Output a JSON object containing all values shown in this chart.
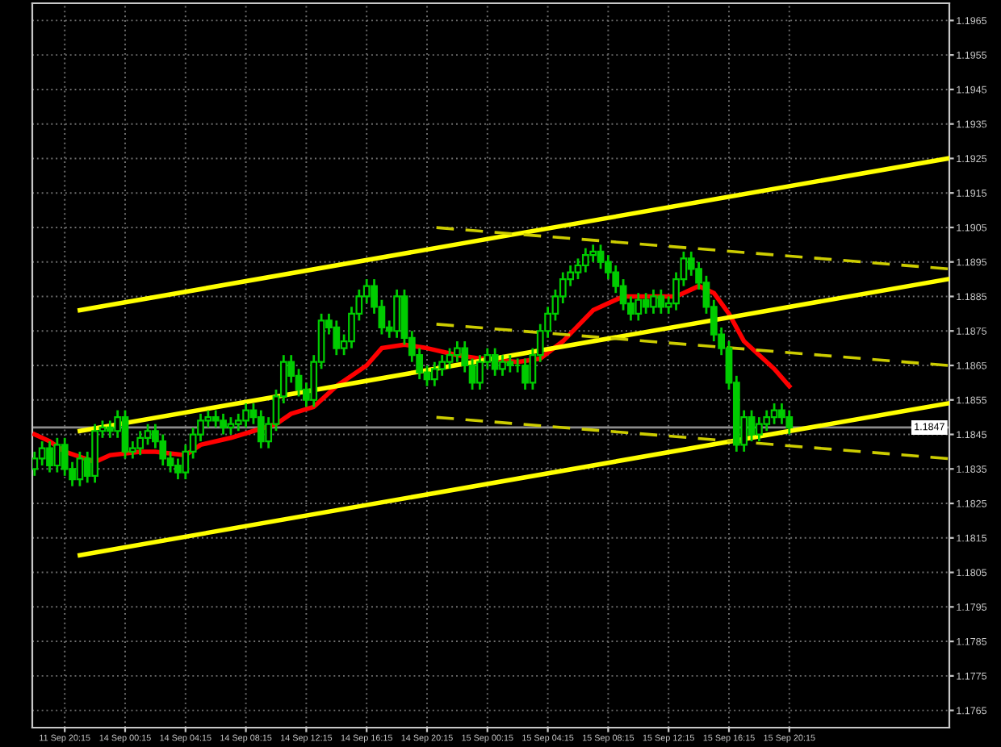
{
  "chart_data": {
    "type": "candlestick",
    "categories": [
      null,
      null,
      null,
      null,
      "11 Sep 20:15",
      null,
      null,
      null,
      null,
      null,
      null,
      null,
      "14 Sep 00:15",
      null,
      null,
      null,
      null,
      null,
      null,
      null,
      "14 Sep 04:15",
      null,
      null,
      null,
      null,
      null,
      null,
      null,
      "14 Sep 08:15",
      null,
      null,
      null,
      null,
      null,
      null,
      null,
      "14 Sep 12:15",
      null,
      null,
      null,
      null,
      null,
      null,
      null,
      "14 Sep 16:15",
      null,
      null,
      null,
      null,
      null,
      null,
      null,
      "14 Sep 20:15",
      null,
      null,
      null,
      null,
      null,
      null,
      null,
      "15 Sep 00:15",
      null,
      null,
      null,
      null,
      null,
      null,
      null,
      "15 Sep 04:15",
      null,
      null,
      null,
      null,
      null,
      null,
      null,
      "15 Sep 08:15",
      null,
      null,
      null,
      null,
      null,
      null,
      null,
      "15 Sep 12:15",
      null,
      null,
      null,
      null,
      null,
      null,
      null,
      "15 Sep 16:15",
      null,
      null,
      null,
      null,
      null,
      null,
      null,
      "15 Sep 20:15",
      null,
      null,
      null,
      null,
      null,
      null,
      null,
      null,
      null,
      null,
      null,
      null,
      null,
      null,
      null,
      null,
      null,
      null,
      null,
      null,
      null
    ],
    "ohlc": [
      [
        1.1835,
        1.184,
        1.1833,
        1.1838
      ],
      [
        1.1838,
        1.1843,
        1.1836,
        1.1841
      ],
      [
        1.1841,
        1.1843,
        1.1834,
        1.1836
      ],
      [
        1.1836,
        1.1844,
        1.1834,
        1.1842
      ],
      [
        1.1842,
        1.1844,
        1.1833,
        1.1835
      ],
      [
        1.1835,
        1.1837,
        1.183,
        1.1832
      ],
      [
        1.1832,
        1.184,
        1.183,
        1.1838
      ],
      [
        1.1838,
        1.184,
        1.1831,
        1.1833
      ],
      [
        1.1833,
        1.1848,
        1.1831,
        1.1846
      ],
      [
        1.1846,
        1.1849,
        1.1844,
        1.1847
      ],
      [
        1.1847,
        1.1849,
        1.1844,
        1.1846
      ],
      [
        1.1846,
        1.1852,
        1.1844,
        1.185
      ],
      [
        1.185,
        1.1852,
        1.1838,
        1.184
      ],
      [
        1.184,
        1.1843,
        1.1838,
        1.1841
      ],
      [
        1.1841,
        1.1846,
        1.1839,
        1.1844
      ],
      [
        1.1844,
        1.1848,
        1.1842,
        1.1846
      ],
      [
        1.1846,
        1.1848,
        1.1841,
        1.1843
      ],
      [
        1.1843,
        1.1845,
        1.1836,
        1.1838
      ],
      [
        1.1838,
        1.184,
        1.1834,
        1.1836
      ],
      [
        1.1836,
        1.1838,
        1.1832,
        1.1834
      ],
      [
        1.1834,
        1.1842,
        1.1832,
        1.184
      ],
      [
        1.184,
        1.1847,
        1.1838,
        1.1845
      ],
      [
        1.1845,
        1.1851,
        1.1843,
        1.1849
      ],
      [
        1.1849,
        1.1852,
        1.1847,
        1.185
      ],
      [
        1.185,
        1.1852,
        1.1847,
        1.1849
      ],
      [
        1.1849,
        1.1851,
        1.1845,
        1.1847
      ],
      [
        1.1847,
        1.185,
        1.1845,
        1.1848
      ],
      [
        1.1848,
        1.1851,
        1.1846,
        1.1849
      ],
      [
        1.1849,
        1.1854,
        1.1847,
        1.1852
      ],
      [
        1.1852,
        1.1854,
        1.1848,
        1.185
      ],
      [
        1.185,
        1.1852,
        1.1841,
        1.1843
      ],
      [
        1.1843,
        1.185,
        1.1841,
        1.1848
      ],
      [
        1.1848,
        1.1858,
        1.1846,
        1.1856
      ],
      [
        1.1856,
        1.1868,
        1.1854,
        1.1866
      ],
      [
        1.1866,
        1.1868,
        1.186,
        1.1862
      ],
      [
        1.1862,
        1.1864,
        1.1856,
        1.1858
      ],
      [
        1.1858,
        1.186,
        1.1853,
        1.1855
      ],
      [
        1.1855,
        1.1868,
        1.1853,
        1.1866
      ],
      [
        1.1866,
        1.188,
        1.1864,
        1.1878
      ],
      [
        1.1878,
        1.188,
        1.1874,
        1.1876
      ],
      [
        1.1876,
        1.1878,
        1.1868,
        1.187
      ],
      [
        1.187,
        1.1874,
        1.1868,
        1.1872
      ],
      [
        1.1872,
        1.1882,
        1.187,
        1.188
      ],
      [
        1.188,
        1.1887,
        1.1878,
        1.1885
      ],
      [
        1.1885,
        1.189,
        1.1883,
        1.1888
      ],
      [
        1.1888,
        1.189,
        1.188,
        1.1882
      ],
      [
        1.1882,
        1.1884,
        1.1874,
        1.1876
      ],
      [
        1.1876,
        1.1878,
        1.1873,
        1.1875
      ],
      [
        1.1875,
        1.1887,
        1.1873,
        1.1885
      ],
      [
        1.1885,
        1.1887,
        1.1871,
        1.1873
      ],
      [
        1.1873,
        1.1875,
        1.1866,
        1.1868
      ],
      [
        1.1868,
        1.187,
        1.1861,
        1.1863
      ],
      [
        1.1863,
        1.1865,
        1.1859,
        1.1861
      ],
      [
        1.1861,
        1.1866,
        1.1859,
        1.1864
      ],
      [
        1.1864,
        1.1868,
        1.1862,
        1.1866
      ],
      [
        1.1866,
        1.187,
        1.1864,
        1.1868
      ],
      [
        1.1868,
        1.1872,
        1.1866,
        1.187
      ],
      [
        1.187,
        1.1872,
        1.1863,
        1.1865
      ],
      [
        1.1865,
        1.1867,
        1.1858,
        1.186
      ],
      [
        1.186,
        1.1868,
        1.1858,
        1.1866
      ],
      [
        1.1866,
        1.187,
        1.1864,
        1.1868
      ],
      [
        1.1868,
        1.187,
        1.1862,
        1.1864
      ],
      [
        1.1864,
        1.1868,
        1.1862,
        1.1866
      ],
      [
        1.1866,
        1.1868,
        1.1863,
        1.1865
      ],
      [
        1.1865,
        1.1867,
        1.1863,
        1.1865
      ],
      [
        1.1865,
        1.1867,
        1.1858,
        1.186
      ],
      [
        1.186,
        1.187,
        1.1858,
        1.1868
      ],
      [
        1.1868,
        1.1877,
        1.1866,
        1.1875
      ],
      [
        1.1875,
        1.1882,
        1.1873,
        1.188
      ],
      [
        1.188,
        1.1887,
        1.1878,
        1.1885
      ],
      [
        1.1885,
        1.1892,
        1.1883,
        1.189
      ],
      [
        1.189,
        1.1894,
        1.1888,
        1.1892
      ],
      [
        1.1892,
        1.1896,
        1.189,
        1.1894
      ],
      [
        1.1894,
        1.1899,
        1.1892,
        1.1897
      ],
      [
        1.1897,
        1.19,
        1.1895,
        1.1898
      ],
      [
        1.1898,
        1.19,
        1.1893,
        1.1895
      ],
      [
        1.1895,
        1.1897,
        1.189,
        1.1892
      ],
      [
        1.1892,
        1.1894,
        1.1886,
        1.1888
      ],
      [
        1.1888,
        1.189,
        1.1881,
        1.1883
      ],
      [
        1.1883,
        1.1885,
        1.1878,
        1.188
      ],
      [
        1.188,
        1.1886,
        1.1878,
        1.1884
      ],
      [
        1.1884,
        1.1886,
        1.188,
        1.1882
      ],
      [
        1.1882,
        1.1887,
        1.188,
        1.1885
      ],
      [
        1.1885,
        1.1887,
        1.188,
        1.1882
      ],
      [
        1.1882,
        1.1885,
        1.188,
        1.1883
      ],
      [
        1.1883,
        1.1892,
        1.1881,
        1.189
      ],
      [
        1.189,
        1.1898,
        1.1888,
        1.1896
      ],
      [
        1.1896,
        1.1898,
        1.1891,
        1.1893
      ],
      [
        1.1893,
        1.1895,
        1.1887,
        1.1889
      ],
      [
        1.1889,
        1.1891,
        1.188,
        1.1882
      ],
      [
        1.1882,
        1.1884,
        1.1872,
        1.1874
      ],
      [
        1.1874,
        1.1876,
        1.1868,
        1.187
      ],
      [
        1.187,
        1.1872,
        1.1858,
        1.186
      ],
      [
        1.186,
        1.1862,
        1.184,
        1.1842
      ],
      [
        1.1842,
        1.1852,
        1.184,
        1.185
      ],
      [
        1.185,
        1.1852,
        1.1843,
        1.1845
      ],
      [
        1.1845,
        1.185,
        1.1843,
        1.1848
      ],
      [
        1.1848,
        1.1852,
        1.1846,
        1.185
      ],
      [
        1.185,
        1.1854,
        1.1848,
        1.1852
      ],
      [
        1.1852,
        1.1854,
        1.1848,
        1.185
      ],
      [
        1.185,
        1.1852,
        1.1845,
        1.1847
      ],
      null,
      null,
      null,
      null,
      null,
      null,
      null,
      null,
      null,
      null,
      null,
      null,
      null,
      null,
      null,
      null,
      null,
      null,
      null,
      null,
      null
    ],
    "color": "#00cc00",
    "series": [
      {
        "type": "line",
        "color": "#ff0000",
        "line_style": "solid",
        "values": [
          1.1845,
          null,
          1.1843,
          null,
          1.184,
          null,
          null,
          null,
          1.1837,
          null,
          1.1839,
          null,
          null,
          null,
          1.184,
          null,
          1.184,
          null,
          null,
          null,
          1.1839,
          null,
          1.1842,
          null,
          null,
          null,
          1.1844,
          null,
          null,
          1.1846,
          null,
          null,
          1.1848,
          null,
          1.1851,
          null,
          null,
          1.1853,
          null,
          null,
          1.1859,
          null,
          null,
          null,
          1.1865,
          null,
          1.187,
          null,
          null,
          1.1871,
          null,
          null,
          1.187,
          null,
          null,
          null,
          1.1868,
          null,
          null,
          1.1867,
          1.1867,
          null,
          null,
          null,
          1.1866,
          null,
          null,
          1.1867,
          null,
          null,
          1.1872,
          null,
          null,
          null,
          1.1881,
          null,
          null,
          null,
          1.1885,
          null,
          null,
          null,
          null,
          null,
          null,
          1.1885,
          null,
          null,
          1.1888,
          null,
          1.1886,
          null,
          1.188,
          null,
          1.1872,
          null,
          null,
          null,
          1.1864,
          null,
          1.1859,
          null,
          null,
          null,
          null,
          null,
          null,
          null,
          null,
          null,
          null,
          null,
          null,
          null,
          null,
          null,
          null,
          null,
          null,
          null,
          null,
          null
        ]
      },
      {
        "type": "line",
        "color": "#ffff00",
        "line_style": "solid",
        "values": [
          null,
          null,
          null,
          null,
          null,
          null,
          1.1881,
          null,
          null,
          null,
          null,
          null,
          null,
          null,
          null,
          null,
          null,
          null,
          null,
          null,
          null,
          null,
          null,
          null,
          null,
          null,
          null,
          null,
          null,
          null,
          null,
          null,
          null,
          null,
          null,
          null,
          null,
          null,
          null,
          null,
          null,
          null,
          null,
          null,
          null,
          null,
          null,
          null,
          null,
          null,
          null,
          null,
          null,
          null,
          null,
          null,
          null,
          null,
          null,
          null,
          null,
          null,
          null,
          null,
          null,
          null,
          null,
          null,
          null,
          null,
          null,
          null,
          null,
          null,
          null,
          null,
          null,
          null,
          null,
          null,
          null,
          null,
          null,
          null,
          null,
          null,
          null,
          null,
          null,
          null,
          null,
          null,
          null,
          null,
          null,
          null,
          null,
          null,
          null,
          null,
          null,
          null,
          null,
          null,
          null,
          null,
          null,
          null,
          null,
          null,
          null,
          null,
          null,
          null,
          null,
          null,
          null,
          null,
          null,
          null,
          null,
          1.1925
        ]
      },
      {
        "type": "line",
        "color": "#ffff00",
        "line_style": "solid",
        "values": [
          null,
          null,
          null,
          null,
          null,
          null,
          1.1846,
          null,
          null,
          null,
          null,
          null,
          null,
          null,
          null,
          null,
          null,
          null,
          null,
          null,
          null,
          null,
          null,
          null,
          null,
          null,
          null,
          null,
          null,
          null,
          null,
          null,
          null,
          null,
          null,
          null,
          null,
          null,
          null,
          null,
          null,
          null,
          null,
          null,
          null,
          null,
          null,
          null,
          null,
          null,
          null,
          null,
          null,
          null,
          null,
          null,
          null,
          null,
          null,
          null,
          null,
          null,
          null,
          null,
          null,
          null,
          null,
          null,
          null,
          null,
          null,
          null,
          null,
          null,
          null,
          null,
          null,
          null,
          null,
          null,
          null,
          null,
          null,
          null,
          null,
          null,
          null,
          null,
          null,
          null,
          null,
          null,
          null,
          null,
          null,
          null,
          null,
          null,
          null,
          null,
          null,
          null,
          null,
          null,
          null,
          null,
          null,
          null,
          null,
          null,
          null,
          null,
          null,
          null,
          null,
          null,
          null,
          null,
          null,
          null,
          null,
          1.189
        ]
      },
      {
        "type": "line",
        "color": "#ffff00",
        "line_style": "solid",
        "values": [
          null,
          null,
          null,
          null,
          null,
          null,
          1.181,
          null,
          null,
          null,
          null,
          null,
          null,
          null,
          null,
          null,
          null,
          null,
          null,
          null,
          null,
          null,
          null,
          null,
          null,
          null,
          null,
          null,
          null,
          null,
          null,
          null,
          null,
          null,
          null,
          null,
          null,
          null,
          null,
          null,
          null,
          null,
          null,
          null,
          null,
          null,
          null,
          null,
          null,
          null,
          null,
          null,
          null,
          null,
          null,
          null,
          null,
          null,
          null,
          null,
          null,
          null,
          null,
          null,
          null,
          null,
          null,
          null,
          null,
          null,
          null,
          null,
          null,
          null,
          null,
          null,
          null,
          null,
          null,
          null,
          null,
          null,
          null,
          null,
          null,
          null,
          null,
          null,
          null,
          null,
          null,
          null,
          null,
          null,
          null,
          null,
          null,
          null,
          null,
          null,
          null,
          null,
          null,
          null,
          null,
          null,
          null,
          null,
          null,
          null,
          null,
          null,
          null,
          null,
          null,
          null,
          null,
          null,
          null,
          null,
          null,
          1.1854
        ]
      },
      {
        "type": "line",
        "color": "#cccc00",
        "line_style": "dashed",
        "values": [
          null,
          null,
          null,
          null,
          null,
          null,
          null,
          null,
          null,
          null,
          null,
          null,
          null,
          null,
          null,
          null,
          null,
          null,
          null,
          null,
          null,
          null,
          null,
          null,
          null,
          null,
          null,
          null,
          null,
          null,
          null,
          null,
          null,
          null,
          null,
          null,
          null,
          null,
          null,
          null,
          null,
          null,
          null,
          null,
          null,
          null,
          null,
          null,
          null,
          null,
          null,
          null,
          null,
          1.1905,
          null,
          null,
          null,
          null,
          null,
          null,
          null,
          null,
          null,
          null,
          null,
          null,
          null,
          null,
          null,
          null,
          null,
          null,
          null,
          null,
          null,
          null,
          null,
          null,
          null,
          null,
          null,
          null,
          null,
          null,
          null,
          null,
          null,
          null,
          null,
          null,
          null,
          null,
          null,
          null,
          null,
          null,
          null,
          null,
          null,
          null,
          null,
          null,
          null,
          null,
          null,
          null,
          null,
          null,
          null,
          null,
          null,
          null,
          null,
          null,
          null,
          null,
          null,
          null,
          null,
          null,
          null,
          1.1893
        ]
      },
      {
        "type": "line",
        "color": "#cccc00",
        "line_style": "dashed",
        "values": [
          null,
          null,
          null,
          null,
          null,
          null,
          null,
          null,
          null,
          null,
          null,
          null,
          null,
          null,
          null,
          null,
          null,
          null,
          null,
          null,
          null,
          null,
          null,
          null,
          null,
          null,
          null,
          null,
          null,
          null,
          null,
          null,
          null,
          null,
          null,
          null,
          null,
          null,
          null,
          null,
          null,
          null,
          null,
          null,
          null,
          null,
          null,
          null,
          null,
          null,
          null,
          null,
          null,
          1.1877,
          null,
          null,
          null,
          null,
          null,
          null,
          null,
          null,
          null,
          null,
          null,
          null,
          null,
          null,
          null,
          null,
          null,
          null,
          null,
          null,
          null,
          null,
          null,
          null,
          null,
          null,
          null,
          null,
          null,
          null,
          null,
          null,
          null,
          null,
          null,
          null,
          null,
          null,
          null,
          null,
          null,
          null,
          null,
          null,
          null,
          null,
          null,
          null,
          null,
          null,
          null,
          null,
          null,
          null,
          null,
          null,
          null,
          null,
          null,
          null,
          null,
          null,
          null,
          null,
          null,
          null,
          null,
          1.1865
        ]
      },
      {
        "type": "line",
        "color": "#cccc00",
        "line_style": "dashed",
        "values": [
          null,
          null,
          null,
          null,
          null,
          null,
          null,
          null,
          null,
          null,
          null,
          null,
          null,
          null,
          null,
          null,
          null,
          null,
          null,
          null,
          null,
          null,
          null,
          null,
          null,
          null,
          null,
          null,
          null,
          null,
          null,
          null,
          null,
          null,
          null,
          null,
          null,
          null,
          null,
          null,
          null,
          null,
          null,
          null,
          null,
          null,
          null,
          null,
          null,
          null,
          null,
          null,
          null,
          1.185,
          null,
          null,
          null,
          null,
          null,
          null,
          null,
          null,
          null,
          null,
          null,
          null,
          null,
          null,
          null,
          null,
          null,
          null,
          null,
          null,
          null,
          null,
          null,
          null,
          null,
          null,
          null,
          null,
          null,
          null,
          null,
          null,
          null,
          null,
          null,
          null,
          null,
          null,
          null,
          null,
          null,
          null,
          null,
          null,
          null,
          null,
          null,
          null,
          null,
          null,
          null,
          null,
          null,
          null,
          null,
          null,
          null,
          null,
          null,
          null,
          null,
          null,
          null,
          null,
          null,
          null,
          null,
          1.1838
        ]
      }
    ],
    "ylim": [
      1.176,
      1.197
    ],
    "yticks": [
      1.1765,
      1.1775,
      1.1785,
      1.1795,
      1.1805,
      1.1815,
      1.1825,
      1.1835,
      1.1845,
      1.1855,
      1.1865,
      1.1875,
      1.1885,
      1.1895,
      1.1905,
      1.1915,
      1.1925,
      1.1935,
      1.1945,
      1.1955,
      1.1965
    ],
    "ref_lines": [
      {
        "axis": "y",
        "value": 1.1847,
        "label": "1.1847",
        "color": "#8c8c8c"
      }
    ],
    "grid": true,
    "legend": false
  }
}
